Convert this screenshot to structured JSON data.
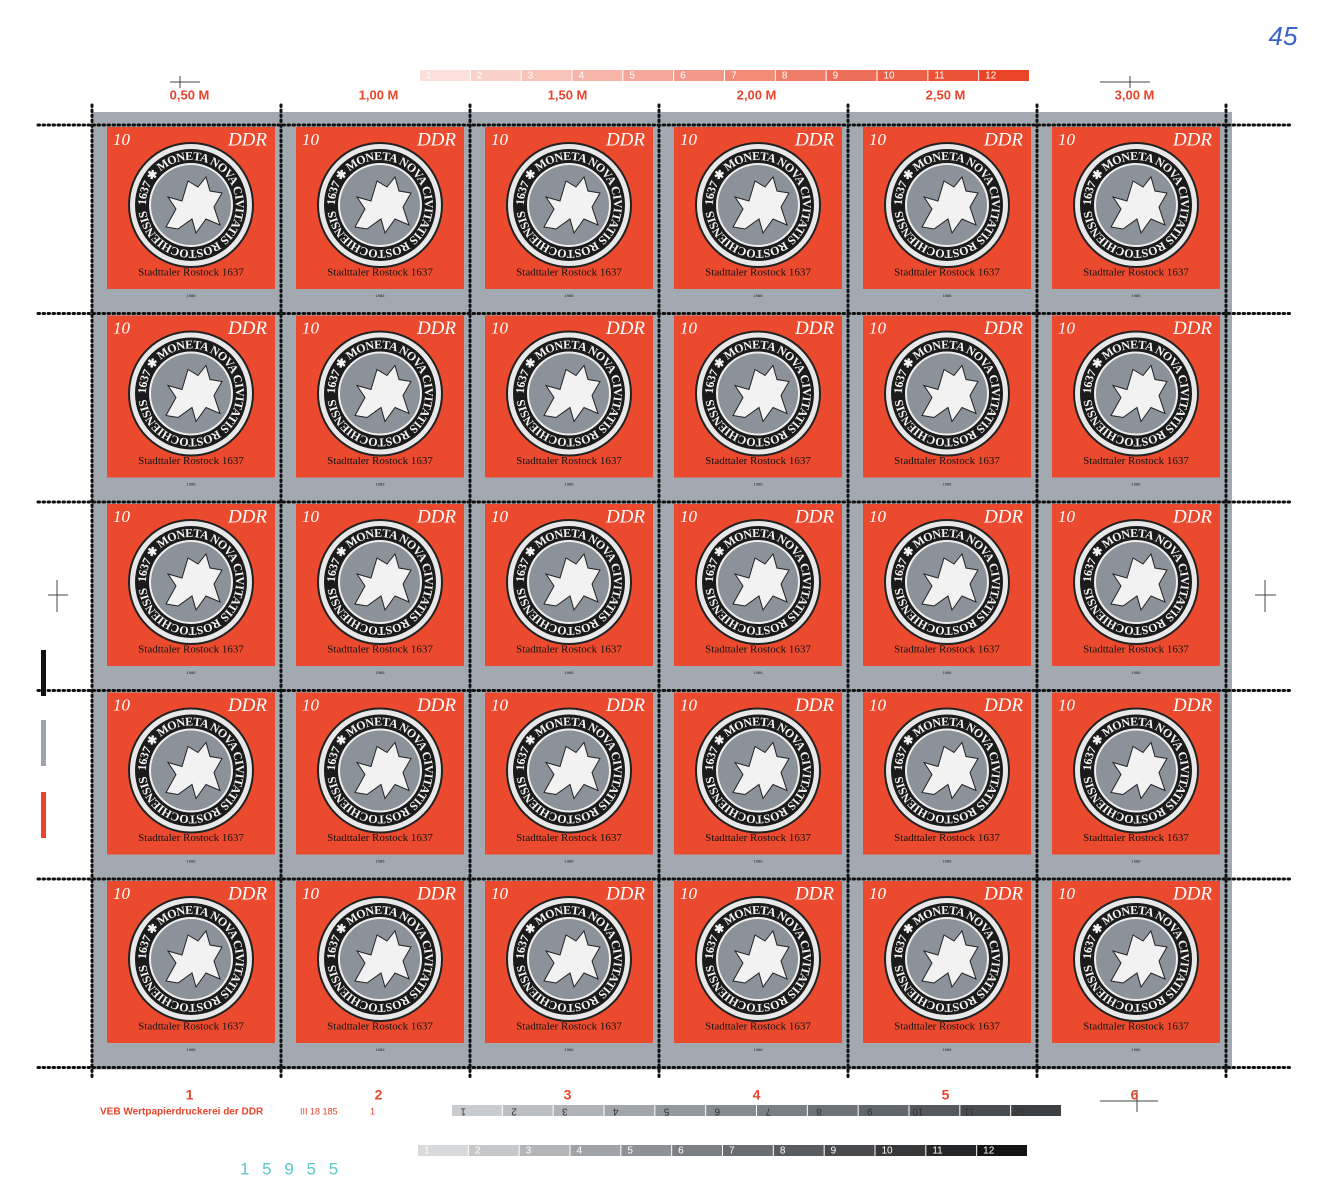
{
  "header": {
    "value_labels": [
      "0,50 M",
      "1,00 M",
      "1,50 M",
      "2,00 M",
      "2,50 M",
      "3,00 M"
    ],
    "color_bar": [
      "1",
      "2",
      "3",
      "4",
      "5",
      "6",
      "7",
      "8",
      "9",
      "10",
      "11",
      "12"
    ],
    "handwritten": "45"
  },
  "stamp": {
    "value": "10",
    "country": "DDR",
    "coin_legend": "1637 ✱ MONETA NOVA CIVITATIS ROSTOCHIENSIS",
    "caption": "Stadttaler Rostock 1637",
    "year": "1986"
  },
  "footer": {
    "column_numbers": [
      "1",
      "2",
      "3",
      "4",
      "5",
      "6"
    ],
    "printer": "VEB Wertpapierdruckerei der DDR",
    "code": "III 18 185",
    "plate": "1",
    "serial": "1 5 9 5 5"
  }
}
